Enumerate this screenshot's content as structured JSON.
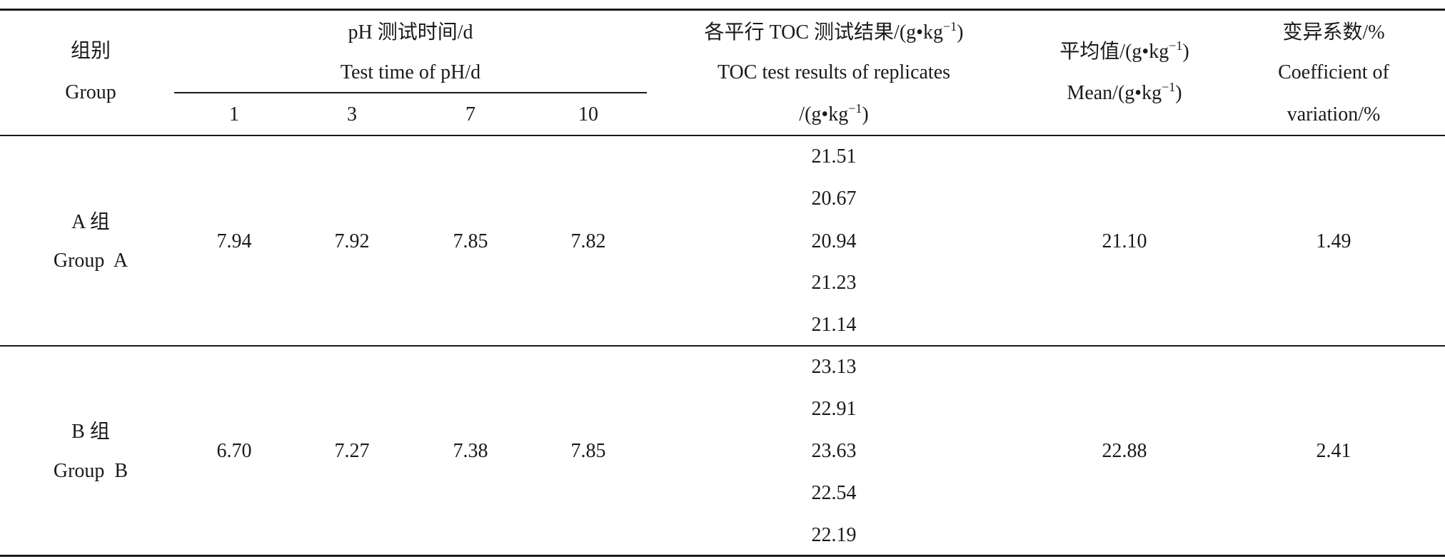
{
  "header": {
    "group_cn": "组别",
    "group_en": "Group",
    "ph_cn": "pH 测试时间/d",
    "ph_en": "Test time of pH/d",
    "ph_days": [
      "1",
      "3",
      "7",
      "10"
    ],
    "toc_cn": "各平行 TOC 测试结果/(g•kg",
    "toc_en": "TOC test results of replicates",
    "toc_unit": "/(g•kg",
    "mean_cn": "平均值/(g•kg",
    "mean_en": "Mean/(g•kg",
    "sup": "−1",
    "close": ")",
    "cv_cn": "变异系数/%",
    "cv_en1": "Coefficient of",
    "cv_en2": "variation/%"
  },
  "rows": [
    {
      "group_cn": "A 组",
      "group_en": "Group  A",
      "ph": [
        "7.94",
        "7.92",
        "7.85",
        "7.82"
      ],
      "toc": [
        "21.51",
        "20.67",
        "20.94",
        "21.23",
        "21.14"
      ],
      "mean": "21.10",
      "cv": "1.49"
    },
    {
      "group_cn": "B 组",
      "group_en": "Group  B",
      "ph": [
        "6.70",
        "7.27",
        "7.38",
        "7.85"
      ],
      "toc": [
        "23.13",
        "22.91",
        "23.63",
        "22.54",
        "22.19"
      ],
      "mean": "22.88",
      "cv": "2.41"
    }
  ]
}
